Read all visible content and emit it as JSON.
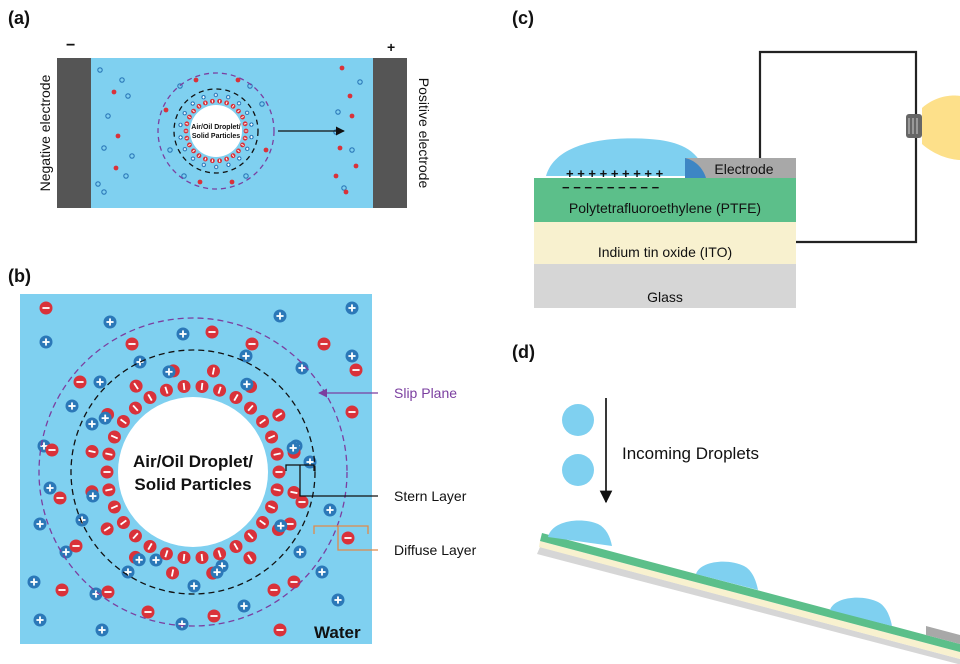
{
  "panels": {
    "a": {
      "label": "(a)",
      "neg_sign": "−",
      "pos_sign": "+",
      "negative_electrode": "Negative electrode",
      "positive_electrode": "Positive electrode",
      "particle_line1": "Air/Oil Droplet/",
      "particle_line2": "Solid Particles"
    },
    "b": {
      "label": "(b)",
      "particle_line1": "Air/Oil Droplet/",
      "particle_line2": "Solid Particles",
      "slip_plane": "Slip Plane",
      "stern_layer": "Stern Layer",
      "diffuse_layer": "Diffuse Layer",
      "water": "Water"
    },
    "c": {
      "label": "(c)",
      "electrode": "Electrode",
      "ptfe": "Polytetrafluoroethylene (PTFE)",
      "ito": "Indium tin oxide (ITO)",
      "glass": "Glass",
      "plus_row": "+ + + + + + + + +",
      "minus_row": "−  −  −  −  −  −  −  −  −"
    },
    "d": {
      "label": "(d)",
      "incoming": "Incoming Droplets"
    }
  },
  "colors": {
    "water": "#7fd0f0",
    "electrode_dark": "#555555",
    "negative_ion": "#d9323a",
    "positive_ion": "#2b78b8",
    "slip_plane": "#7b3fa0",
    "diffuse_layer": "#e08a4a",
    "ptfe": "#5cbf8a",
    "ito": "#f8f1cf",
    "glass": "#d6d6d6",
    "electrode_grey": "#a8a8a8",
    "bulb": "#fde08a"
  }
}
